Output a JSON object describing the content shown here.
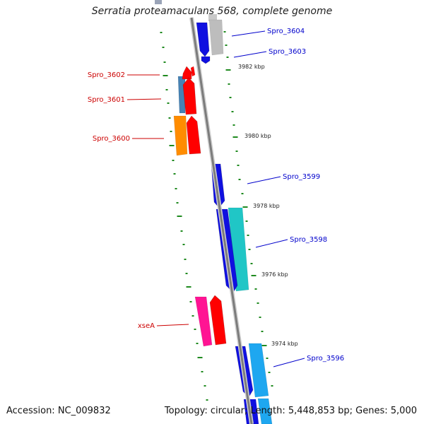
{
  "title": "Serratia proteamaculans 568, complete genome",
  "footer": {
    "accession": "Accession: NC_009832",
    "summary": "Topology: circular; Length: 5,448,853 bp; Genes: 5,000"
  },
  "colors": {
    "backbone": "#8a8a8a",
    "tick": "#1f8a1f",
    "label_forward": "#0000cc",
    "label_reverse": "#cc0000"
  },
  "kbp_markers": [
    {
      "label": "3982 kbp"
    },
    {
      "label": "3980 kbp"
    },
    {
      "label": "3978 kbp"
    },
    {
      "label": "3976 kbp"
    },
    {
      "label": "3974 kbp"
    }
  ],
  "genes": [
    {
      "name": "Spro_3604",
      "strand": "+",
      "color": "#1010e0"
    },
    {
      "name": "Spro_3603",
      "strand": "+",
      "color": "#1010e0"
    },
    {
      "name": "Spro_3602",
      "strand": "-",
      "color": "#ff0000"
    },
    {
      "name": "Spro_3601",
      "strand": "-",
      "color": "#ff0000"
    },
    {
      "name": "Spro_3600",
      "strand": "-",
      "color": "#ff0000"
    },
    {
      "name": "Spro_3599",
      "strand": "+",
      "color": "#1010e0"
    },
    {
      "name": "Spro_3598",
      "strand": "+",
      "color": "#1010e0"
    },
    {
      "name": "xseA",
      "strand": "-",
      "color": "#ff0000"
    },
    {
      "name": "Spro_3596",
      "strand": "+",
      "color": "#1010e0"
    }
  ]
}
